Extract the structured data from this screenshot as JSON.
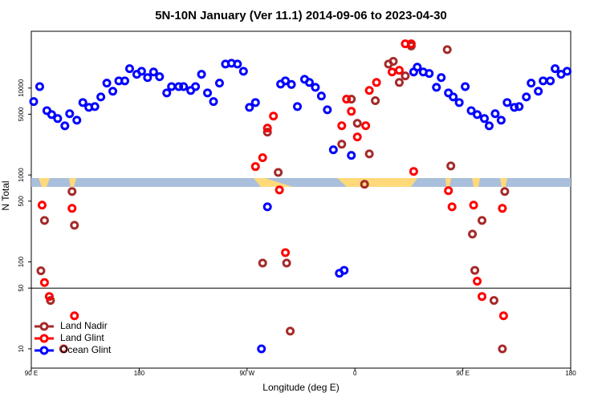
{
  "chart_data": {
    "type": "scatter",
    "title": "5N-10N January (Ver 11.1)   2014-09-06 to 2023-04-30",
    "x_label": "Longitude (deg E)",
    "y_label": "N Total",
    "log_y": true,
    "legend": "bottom-left",
    "hline": 50,
    "xlim": [
      90,
      540
    ],
    "ylim": [
      6,
      45000
    ],
    "xticks": [
      {
        "value": 90,
        "label": "90 E"
      },
      {
        "value": 180,
        "label": "180"
      },
      {
        "value": 270,
        "label": "90 W"
      },
      {
        "value": 360,
        "label": "0"
      },
      {
        "value": 450,
        "label": "90 E"
      },
      {
        "value": 540,
        "label": "180"
      }
    ],
    "yticks": [
      10,
      50,
      100,
      500,
      1000,
      5000,
      10000
    ],
    "series": [
      {
        "name": "Land Nadir",
        "color": "#a52a2a",
        "x": [
          98,
          101,
          106,
          117,
          124,
          126,
          283,
          287,
          296,
          303,
          306,
          349,
          357,
          362,
          368,
          372,
          377,
          388,
          392,
          397,
          402,
          407,
          437,
          440,
          458,
          460,
          466,
          476,
          483,
          485
        ],
        "values": [
          79,
          300,
          36,
          10,
          646,
          264,
          97,
          3110,
          1070,
          97,
          16,
          2260,
          7450,
          3930,
          782,
          1750,
          7160,
          18900,
          20300,
          11600,
          13800,
          30500,
          27700,
          1270,
          209,
          80,
          300,
          36,
          10,
          646
        ]
      },
      {
        "name": "Land Glint",
        "color": "#ff0000",
        "x": [
          99,
          101,
          105,
          124,
          126,
          277,
          283,
          287,
          292,
          297,
          302,
          349,
          353,
          357,
          362,
          369,
          372,
          378,
          391,
          397,
          402,
          407,
          409,
          438,
          441,
          459,
          462,
          466,
          483,
          484
        ],
        "values": [
          450,
          58,
          40,
          413,
          24,
          1250,
          1580,
          3460,
          4760,
          673,
          128,
          3690,
          7450,
          5400,
          2740,
          3690,
          9400,
          11600,
          15300,
          16000,
          32300,
          32300,
          1100,
          660,
          430,
          450,
          60,
          40,
          413,
          24
        ]
      },
      {
        "name": "Ocean Glint",
        "color": "#0000ff",
        "x": [
          92,
          97,
          103,
          107,
          112,
          118,
          122,
          128,
          133,
          138,
          143,
          148,
          153,
          158,
          163,
          168,
          172,
          178,
          182,
          187,
          192,
          197,
          203,
          207,
          213,
          217,
          223,
          227,
          232,
          237,
          242,
          247,
          252,
          257,
          262,
          267,
          272,
          277,
          282,
          287,
          298,
          302,
          307,
          312,
          318,
          322,
          327,
          332,
          337,
          342,
          347,
          351,
          357,
          409,
          412,
          417,
          422,
          428,
          432,
          438,
          442,
          447,
          452,
          457,
          462,
          468,
          472,
          477,
          482,
          487,
          493,
          497,
          503,
          507,
          513,
          517,
          523,
          527,
          532,
          537
        ],
        "values": [
          7000,
          10400,
          5500,
          4950,
          4460,
          3680,
          5070,
          4270,
          6820,
          6000,
          6130,
          7910,
          11400,
          9190,
          12100,
          12100,
          16700,
          14400,
          15600,
          13200,
          15300,
          13500,
          8800,
          10400,
          10400,
          10400,
          9380,
          10400,
          14400,
          8800,
          7000,
          11400,
          18900,
          19300,
          18900,
          15600,
          6000,
          6820,
          10,
          430,
          11100,
          12100,
          11000,
          6130,
          12600,
          11600,
          10200,
          8090,
          5630,
          1950,
          74,
          80,
          1680,
          15300,
          17400,
          15300,
          14700,
          10200,
          13200,
          8800,
          7910,
          6820,
          10400,
          5500,
          4950,
          4460,
          3680,
          5070,
          4270,
          6820,
          6000,
          6130,
          7910,
          11400,
          9190,
          12100,
          12100,
          16700,
          14400,
          15600
        ]
      }
    ]
  }
}
